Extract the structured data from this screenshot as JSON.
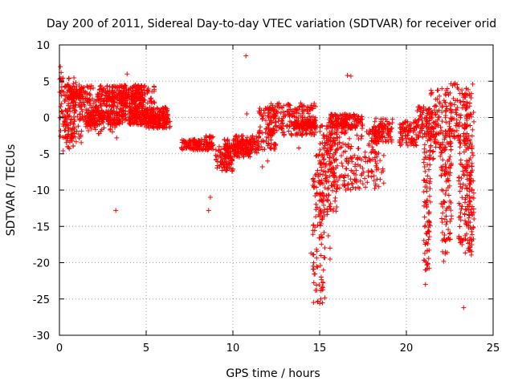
{
  "chart_data": {
    "type": "scatter",
    "title": "Day 200 of 2011, Sidereal Day-to-day VTEC variation (SDTVAR) for receiver orid",
    "xlabel": "GPS time / hours",
    "ylabel": "SDTVAR / TECUs",
    "xlim": [
      0,
      25
    ],
    "ylim": [
      -30,
      10
    ],
    "xticks": [
      0,
      5,
      10,
      15,
      20,
      25
    ],
    "yticks": [
      10,
      5,
      0,
      -5,
      -10,
      -15,
      -20,
      -25,
      -30
    ],
    "grid": true,
    "marker": "+",
    "color": "#ff0000",
    "series": [
      {
        "name": "SDTVAR",
        "bands": [
          {
            "x_start": 0.0,
            "x_end": 0.9,
            "y_low": -4.8,
            "y_high": 5.5
          },
          {
            "x_start": 0.3,
            "x_end": 1.3,
            "y_low": -3.5,
            "y_high": 5.0
          },
          {
            "x_start": 0.5,
            "x_end": 1.3,
            "y_low": 2.5,
            "y_high": 4.0
          },
          {
            "x_start": 1.3,
            "x_end": 3.2,
            "y_low": -2.5,
            "y_high": 4.5
          },
          {
            "x_start": 1.5,
            "x_end": 3.5,
            "y_low": -1.0,
            "y_high": 1.0
          },
          {
            "x_start": 2.3,
            "x_end": 4.8,
            "y_low": 1.5,
            "y_high": 4.5
          },
          {
            "x_start": 3.3,
            "x_end": 4.8,
            "y_low": -1.0,
            "y_high": 3.5
          },
          {
            "x_start": 4.2,
            "x_end": 5.5,
            "y_low": 0.0,
            "y_high": 4.5
          },
          {
            "x_start": 4.0,
            "x_end": 6.3,
            "y_low": -1.0,
            "y_high": 1.5
          },
          {
            "x_start": 5.0,
            "x_end": 6.4,
            "y_low": -1.5,
            "y_high": 0.5
          },
          {
            "x_start": 7.0,
            "x_end": 8.5,
            "y_low": -4.5,
            "y_high": -3.0
          },
          {
            "x_start": 8.4,
            "x_end": 8.9,
            "y_low": -4.5,
            "y_high": -2.5
          },
          {
            "x_start": 9.0,
            "x_end": 10.0,
            "y_low": -7.5,
            "y_high": -4.0
          },
          {
            "x_start": 9.5,
            "x_end": 11.0,
            "y_low": -5.5,
            "y_high": -3.0
          },
          {
            "x_start": 10.0,
            "x_end": 11.5,
            "y_low": -5.0,
            "y_high": -2.5
          },
          {
            "x_start": 11.5,
            "x_end": 12.5,
            "y_low": -4.5,
            "y_high": 1.5
          },
          {
            "x_start": 12.0,
            "x_end": 14.8,
            "y_low": -2.5,
            "y_high": 2.0
          },
          {
            "x_start": 13.5,
            "x_end": 14.8,
            "y_low": -1.5,
            "y_high": -0.5
          },
          {
            "x_start": 14.6,
            "x_end": 15.3,
            "y_low": -26.0,
            "y_high": -5.0
          },
          {
            "x_start": 15.0,
            "x_end": 16.0,
            "y_low": -14.0,
            "y_high": -1.0
          },
          {
            "x_start": 15.3,
            "x_end": 18.7,
            "y_low": -10.0,
            "y_high": -1.0
          },
          {
            "x_start": 15.5,
            "x_end": 17.5,
            "y_low": -1.5,
            "y_high": 0.5
          },
          {
            "x_start": 18.0,
            "x_end": 19.2,
            "y_low": -3.5,
            "y_high": 0.0
          },
          {
            "x_start": 19.6,
            "x_end": 20.6,
            "y_low": -4.0,
            "y_high": -0.5
          },
          {
            "x_start": 20.5,
            "x_end": 21.5,
            "y_low": -3.0,
            "y_high": 1.5
          },
          {
            "x_start": 21.0,
            "x_end": 21.4,
            "y_low": -21.0,
            "y_high": -3.0
          },
          {
            "x_start": 21.3,
            "x_end": 22.3,
            "y_low": -6.0,
            "y_high": 4.0
          },
          {
            "x_start": 22.0,
            "x_end": 22.6,
            "y_low": -19.0,
            "y_high": -3.0
          },
          {
            "x_start": 22.2,
            "x_end": 23.5,
            "y_low": -3.5,
            "y_high": 4.8
          },
          {
            "x_start": 23.0,
            "x_end": 23.8,
            "y_low": -19.0,
            "y_high": -2.0
          },
          {
            "x_start": 23.4,
            "x_end": 23.9,
            "y_low": -17.0,
            "y_high": 4.8
          }
        ],
        "outliers": [
          {
            "x": 10.75,
            "y": 8.5
          },
          {
            "x": 3.9,
            "y": 6.0
          },
          {
            "x": 3.25,
            "y": -12.8
          },
          {
            "x": 10.8,
            "y": 0.5
          },
          {
            "x": 16.6,
            "y": 5.8
          },
          {
            "x": 16.8,
            "y": 5.7
          },
          {
            "x": 14.5,
            "y": -18.7
          },
          {
            "x": 15.5,
            "y": -16.3
          },
          {
            "x": 15.6,
            "y": -18.0
          },
          {
            "x": 15.6,
            "y": -19.5
          },
          {
            "x": 21.1,
            "y": -21.0
          },
          {
            "x": 21.1,
            "y": -23.0
          },
          {
            "x": 22.15,
            "y": -19.8
          },
          {
            "x": 23.3,
            "y": -26.2
          },
          {
            "x": 8.7,
            "y": -11.0
          },
          {
            "x": 8.6,
            "y": -12.8
          },
          {
            "x": 11.7,
            "y": -6.8
          },
          {
            "x": 12.0,
            "y": -6.0
          },
          {
            "x": 13.8,
            "y": -4.2
          },
          {
            "x": 6.2,
            "y": 1.2
          },
          {
            "x": 3.3,
            "y": -2.8
          },
          {
            "x": 0.05,
            "y": 7.0
          },
          {
            "x": 0.1,
            "y": 6.2
          }
        ]
      }
    ]
  }
}
